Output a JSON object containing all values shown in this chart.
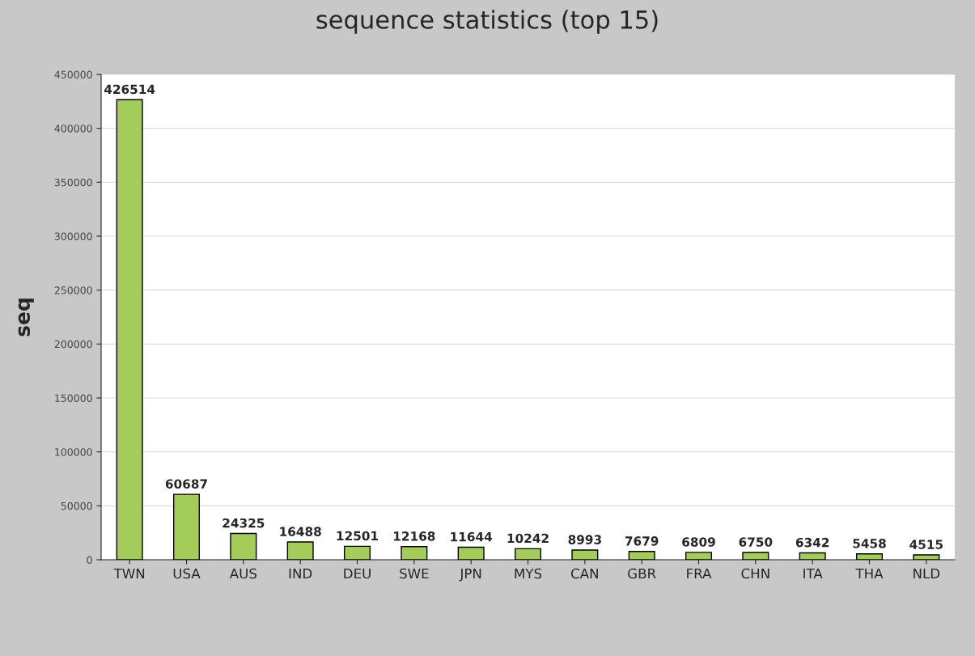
{
  "chart_data": {
    "type": "bar",
    "title": "sequence statistics (top 15)",
    "ylabel": "seq",
    "categories": [
      "TWN",
      "USA",
      "AUS",
      "IND",
      "DEU",
      "SWE",
      "JPN",
      "MYS",
      "CAN",
      "GBR",
      "FRA",
      "CHN",
      "ITA",
      "THA",
      "NLD"
    ],
    "values": [
      426514,
      60687,
      24325,
      16488,
      12501,
      12168,
      11644,
      10242,
      8993,
      7679,
      6809,
      6750,
      6342,
      5458,
      4515
    ],
    "color": "#a3cc5a",
    "ylim": [
      0,
      450000
    ],
    "yticks": [
      0,
      50000,
      100000,
      150000,
      200000,
      250000,
      300000,
      350000,
      400000,
      450000
    ],
    "grid": "y",
    "data_labels": true,
    "legend": false
  }
}
